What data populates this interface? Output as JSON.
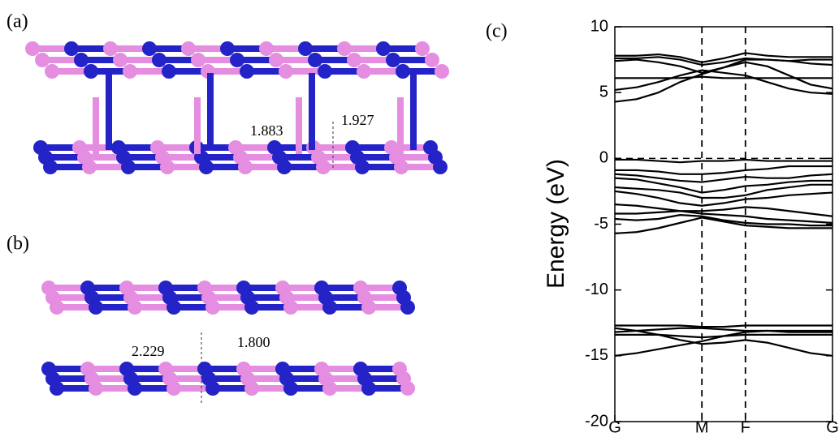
{
  "structures": {
    "a": {
      "label": "(a)",
      "bond_lengths": [
        1.883,
        1.927
      ]
    },
    "b": {
      "label": "(b)",
      "bond_lengths": [
        2.229,
        1.8
      ],
      "bond_length_labels": [
        "2.229",
        "1.800"
      ]
    }
  },
  "chart_data": {
    "type": "line",
    "panel_label": "(c)",
    "y_label": "Energy (eV)",
    "x": [
      0,
      0.1,
      0.2,
      0.3,
      0.4,
      0.5,
      0.6,
      0.7,
      0.8,
      0.9,
      1
    ],
    "xlim": [
      0,
      1
    ],
    "xticks": [
      {
        "value": 0,
        "label": "G"
      },
      {
        "value": 0.4,
        "label": "M"
      },
      {
        "value": 0.6,
        "label": "F"
      },
      {
        "value": 1,
        "label": "G"
      }
    ],
    "ylim": [
      -20,
      10
    ],
    "yticks": [
      -20,
      -15,
      -10,
      -5,
      0,
      5,
      10
    ],
    "vlines": [
      0.4,
      0.6
    ],
    "hlines": [
      0
    ],
    "series": [
      {
        "color": "#000000",
        "values": [
          7.8,
          7.8,
          7.9,
          7.7,
          7.3,
          7.6,
          8.0,
          7.8,
          7.7,
          7.7,
          7.7
        ]
      },
      {
        "color": "#000000",
        "values": [
          7.6,
          7.6,
          7.7,
          7.5,
          7.1,
          7.3,
          7.6,
          7.5,
          7.4,
          7.5,
          7.5
        ]
      },
      {
        "color": "#000000",
        "values": [
          7.4,
          7.5,
          7.3,
          7.0,
          6.5,
          6.9,
          7.5,
          7.5,
          7.4,
          7.2,
          7.1
        ]
      },
      {
        "color": "#000000",
        "values": [
          6.1,
          6.1,
          6.1,
          6.1,
          6.2,
          6.1,
          6.1,
          6.1,
          6.1,
          6.1,
          6.1
        ]
      },
      {
        "color": "#000000",
        "values": [
          5.2,
          5.4,
          5.8,
          6.3,
          6.7,
          6.5,
          6.3,
          5.8,
          5.3,
          5.0,
          4.9
        ]
      },
      {
        "color": "#000000",
        "values": [
          4.3,
          4.5,
          5.0,
          5.8,
          6.4,
          6.9,
          7.3,
          7.0,
          6.3,
          5.6,
          5.3
        ]
      },
      {
        "color": "#000000",
        "values": [
          -0.1,
          -0.1,
          -0.2,
          -0.3,
          -0.2,
          -0.2,
          -0.1,
          -0.2,
          -0.2,
          -0.2,
          -0.2
        ]
      },
      {
        "color": "#000000",
        "values": [
          -0.9,
          -0.9,
          -1.0,
          -1.2,
          -1.2,
          -1.1,
          -0.9,
          -0.8,
          -0.6,
          -0.6,
          -0.6
        ]
      },
      {
        "color": "#000000",
        "values": [
          -1.2,
          -1.3,
          -1.5,
          -1.7,
          -1.8,
          -1.6,
          -1.4,
          -1.5,
          -1.5,
          -1.3,
          -1.2
        ]
      },
      {
        "color": "#000000",
        "values": [
          -1.5,
          -1.6,
          -1.9,
          -2.2,
          -2.6,
          -2.4,
          -2.1,
          -2.0,
          -1.8,
          -1.7,
          -1.7
        ]
      },
      {
        "color": "#000000",
        "values": [
          -2.2,
          -2.3,
          -2.4,
          -2.6,
          -3.0,
          -3.0,
          -2.8,
          -2.4,
          -2.2,
          -2.0,
          -2.0
        ]
      },
      {
        "color": "#000000",
        "values": [
          -2.5,
          -2.7,
          -3.0,
          -3.4,
          -3.6,
          -3.4,
          -3.1,
          -3.0,
          -2.8,
          -2.7,
          -2.6
        ]
      },
      {
        "color": "#000000",
        "values": [
          -3.5,
          -3.6,
          -3.8,
          -4.0,
          -4.0,
          -3.9,
          -3.7,
          -3.8,
          -4.0,
          -4.2,
          -4.4
        ]
      },
      {
        "color": "#000000",
        "values": [
          -4.2,
          -4.2,
          -4.1,
          -4.0,
          -4.2,
          -4.3,
          -4.4,
          -4.6,
          -4.7,
          -4.8,
          -4.9
        ]
      },
      {
        "color": "#000000",
        "values": [
          -4.6,
          -4.7,
          -4.6,
          -4.3,
          -4.4,
          -4.7,
          -4.9,
          -5.0,
          -5.0,
          -5.1,
          -5.1
        ]
      },
      {
        "color": "#000000",
        "values": [
          -5.7,
          -5.6,
          -5.3,
          -4.9,
          -4.5,
          -4.8,
          -5.1,
          -5.2,
          -5.3,
          -5.3,
          -5.3
        ]
      },
      {
        "color": "#000000",
        "values": [
          -12.7,
          -12.7,
          -12.7,
          -12.7,
          -12.8,
          -12.8,
          -12.7,
          -12.7,
          -12.7,
          -12.7,
          -12.7
        ]
      },
      {
        "color": "#000000",
        "values": [
          -13.2,
          -13.1,
          -13.0,
          -12.9,
          -12.9,
          -13.0,
          -13.1,
          -13.1,
          -13.2,
          -13.2,
          -13.2
        ]
      },
      {
        "color": "#000000",
        "values": [
          -13.4,
          -13.4,
          -13.4,
          -13.5,
          -13.6,
          -13.5,
          -13.4,
          -13.4,
          -13.4,
          -13.4,
          -13.4
        ]
      },
      {
        "color": "#000000",
        "values": [
          -15.0,
          -14.8,
          -14.5,
          -14.2,
          -13.9,
          -13.5,
          -13.2,
          -13.1,
          -13.1,
          -13.1,
          -13.1
        ]
      },
      {
        "color": "#000000",
        "values": [
          -12.9,
          -13.1,
          -13.4,
          -13.8,
          -14.1,
          -14.0,
          -13.8,
          -14.0,
          -14.4,
          -14.8,
          -15.0
        ]
      }
    ]
  }
}
